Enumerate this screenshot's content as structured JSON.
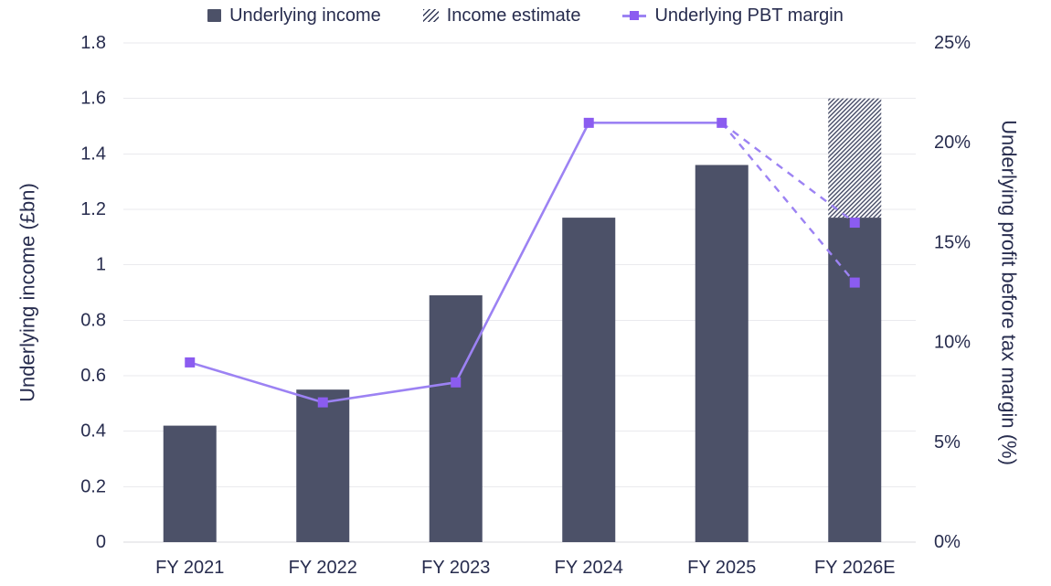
{
  "chart_data": {
    "type": "combo-bar-line",
    "categories": [
      "FY 2021",
      "FY 2022",
      "FY 2023",
      "FY 2024",
      "FY 2025",
      "FY 2026E"
    ],
    "series": [
      {
        "name": "Underlying income",
        "type": "bar",
        "axis": "left",
        "unit": "£bn",
        "values": [
          0.42,
          0.55,
          0.89,
          1.17,
          1.36,
          1.17
        ]
      },
      {
        "name": "Income estimate",
        "type": "bar",
        "style": "hatched",
        "axis": "left",
        "unit": "£bn",
        "base_values": [
          null,
          null,
          null,
          null,
          null,
          1.17
        ],
        "top_values": [
          null,
          null,
          null,
          null,
          null,
          1.6
        ]
      },
      {
        "name": "Underlying PBT margin",
        "type": "line",
        "axis": "right",
        "unit": "%",
        "values": [
          9,
          7,
          8,
          21,
          21,
          null
        ],
        "estimates": {
          "style": "dashed",
          "from_category": "FY 2025",
          "from_value": 21,
          "to_category": "FY 2026E",
          "to_values": [
            16,
            13
          ]
        }
      }
    ],
    "left_axis": {
      "title": "Underlying income (£bn)",
      "min": 0,
      "max": 1.8,
      "tick_values": [
        0,
        0.2,
        0.4,
        0.6,
        0.8,
        1,
        1.2,
        1.4,
        1.6,
        1.8
      ],
      "tick_labels": [
        "0",
        "0.2",
        "0.4",
        "0.6",
        "0.8",
        "1",
        "1.2",
        "1.4",
        "1.6",
        "1.8"
      ]
    },
    "right_axis": {
      "title": "Underlying profit before tax margin (%)",
      "min": 0,
      "max": 25,
      "tick_values": [
        0,
        5,
        10,
        15,
        20,
        25
      ],
      "tick_labels": [
        "0%",
        "5%",
        "10%",
        "15%",
        "20%",
        "25%"
      ]
    },
    "legend": {
      "position": "top",
      "items": [
        {
          "label": "Underlying income",
          "swatch": "filled-square"
        },
        {
          "label": "Income estimate",
          "swatch": "hatched-square"
        },
        {
          "label": "Underlying PBT margin",
          "swatch": "line-with-square-marker"
        }
      ]
    },
    "grid": "horizontal",
    "colors": {
      "bar": "#4c5168",
      "hatch_stroke": "#343a58",
      "line": "#9c82f3",
      "marker": "#8b5cf0",
      "text": "#272c4e",
      "gridline": "#eaeaee",
      "axis_line": "#d8d8de",
      "background": "#ffffff"
    }
  }
}
